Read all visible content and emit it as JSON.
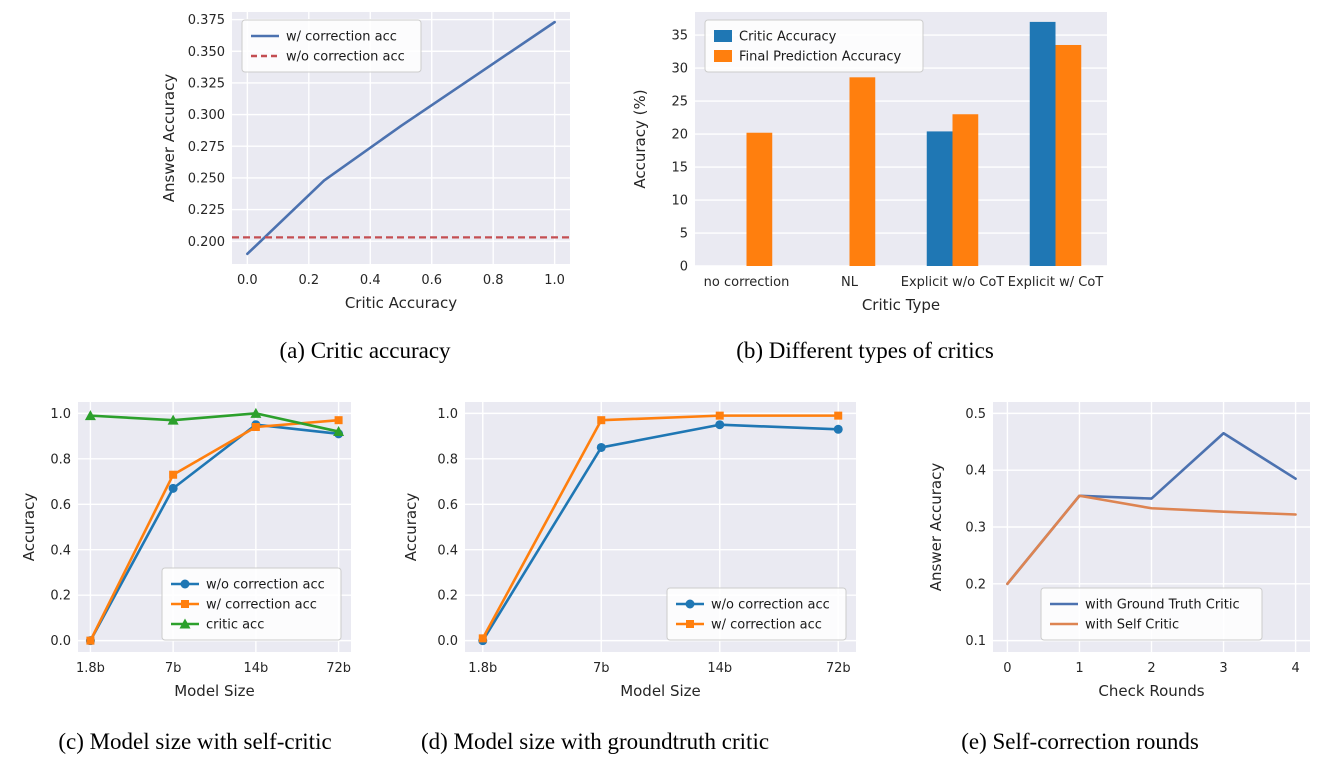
{
  "figure": {
    "captions": {
      "a": "(a) Critic accuracy",
      "b": "(b) Different types of critics",
      "c": "(c) Model size with self-critic",
      "d": "(d) Model size with groundtruth critic",
      "e": "(e) Self-correction rounds"
    }
  },
  "colors": {
    "plot_background": "#eaeaf2",
    "grid": "#ffffff",
    "seaborn_blue": "#4c72b0",
    "seaborn_red": "#c44e52",
    "seaborn_orange": "#dd8452",
    "tab_blue": "#1f77b4",
    "tab_orange": "#ff7f0e",
    "tab_green": "#2ca02c"
  },
  "chart_data": [
    {
      "id": "a",
      "type": "line",
      "title": "",
      "xlabel": "Critic Accuracy",
      "ylabel": "Answer Accuracy",
      "x": [
        0.0,
        0.25,
        0.5,
        0.75,
        1.0
      ],
      "series": [
        {
          "name": "w/ correction acc",
          "color": "#4c72b0",
          "marker": null,
          "values": [
            0.19,
            0.248,
            0.291,
            0.332,
            0.373
          ]
        },
        {
          "name": "w/o correction acc",
          "color": "#c44e52",
          "dash": true,
          "hline": 0.203
        }
      ],
      "xlim": [
        -0.05,
        1.05
      ],
      "ylim": [
        0.182,
        0.381
      ],
      "xticks": {
        "values": [
          0.0,
          0.2,
          0.4,
          0.6,
          0.8,
          1.0
        ],
        "labels": [
          "0.0",
          "0.2",
          "0.4",
          "0.6",
          "0.8",
          "1.0"
        ]
      },
      "yticks": {
        "values": [
          0.2,
          0.225,
          0.25,
          0.275,
          0.3,
          0.325,
          0.35,
          0.375
        ],
        "labels": [
          "0.200",
          "0.225",
          "0.250",
          "0.275",
          "0.300",
          "0.325",
          "0.350",
          "0.375"
        ]
      },
      "grid": true,
      "legend": {
        "position": "upper-left"
      }
    },
    {
      "id": "b",
      "type": "bar",
      "title": "",
      "xlabel": "Critic Type",
      "ylabel": "Accuracy (%)",
      "categories": [
        "no correction",
        "NL",
        "Explicit w/o CoT",
        "Explicit w/ CoT"
      ],
      "series": [
        {
          "name": "Critic Accuracy",
          "color": "#1f77b4",
          "values": [
            0,
            0,
            20.4,
            37.0
          ]
        },
        {
          "name": "Final Prediction Accuracy",
          "color": "#ff7f0e",
          "values": [
            20.2,
            28.6,
            23.0,
            33.5
          ]
        }
      ],
      "ylim": [
        0,
        38.5
      ],
      "yticks": {
        "values": [
          0,
          5,
          10,
          15,
          20,
          25,
          30,
          35
        ],
        "labels": [
          "0",
          "5",
          "10",
          "15",
          "20",
          "25",
          "30",
          "35"
        ]
      },
      "grid": true,
      "legend": {
        "position": "upper-left"
      }
    },
    {
      "id": "c",
      "type": "line",
      "title": "",
      "xlabel": "Model Size",
      "ylabel": "Accuracy",
      "categories": [
        "1.8b",
        "7b",
        "14b",
        "72b"
      ],
      "series": [
        {
          "name": "w/o correction acc",
          "color": "#1f77b4",
          "marker": "circle",
          "values": [
            0.0,
            0.67,
            0.95,
            0.91
          ]
        },
        {
          "name": "w/ correction acc",
          "color": "#ff7f0e",
          "marker": "square",
          "values": [
            0.0,
            0.73,
            0.94,
            0.97
          ]
        },
        {
          "name": "critic acc",
          "color": "#2ca02c",
          "marker": "triangle",
          "values": [
            0.99,
            0.97,
            1.0,
            0.92
          ]
        }
      ],
      "ylim": [
        -0.05,
        1.05
      ],
      "yticks": {
        "values": [
          0.0,
          0.2,
          0.4,
          0.6,
          0.8,
          1.0
        ],
        "labels": [
          "0.0",
          "0.2",
          "0.4",
          "0.6",
          "0.8",
          "1.0"
        ]
      },
      "grid": true,
      "legend": {
        "position": "lower-right"
      }
    },
    {
      "id": "d",
      "type": "line",
      "title": "",
      "xlabel": "Model Size",
      "ylabel": "Accuracy",
      "categories": [
        "1.8b",
        "7b",
        "14b",
        "72b"
      ],
      "series": [
        {
          "name": "w/o correction acc",
          "color": "#1f77b4",
          "marker": "circle",
          "values": [
            0.0,
            0.85,
            0.95,
            0.93
          ]
        },
        {
          "name": "w/ correction acc",
          "color": "#ff7f0e",
          "marker": "square",
          "values": [
            0.01,
            0.97,
            0.99,
            0.99
          ]
        }
      ],
      "ylim": [
        -0.05,
        1.05
      ],
      "yticks": {
        "values": [
          0.0,
          0.2,
          0.4,
          0.6,
          0.8,
          1.0
        ],
        "labels": [
          "0.0",
          "0.2",
          "0.4",
          "0.6",
          "0.8",
          "1.0"
        ]
      },
      "grid": true,
      "legend": {
        "position": "lower-right"
      }
    },
    {
      "id": "e",
      "type": "line",
      "title": "",
      "xlabel": "Check Rounds",
      "ylabel": "Answer Accuracy",
      "x": [
        0,
        1,
        2,
        3,
        4
      ],
      "series": [
        {
          "name": "with Ground Truth Critic",
          "color": "#4c72b0",
          "marker": null,
          "values": [
            0.2,
            0.355,
            0.35,
            0.465,
            0.385
          ]
        },
        {
          "name": "with Self Critic",
          "color": "#dd8452",
          "marker": null,
          "values": [
            0.2,
            0.355,
            0.333,
            0.327,
            0.322
          ]
        }
      ],
      "xlim": [
        -0.2,
        4.2
      ],
      "ylim": [
        0.08,
        0.52
      ],
      "xticks": {
        "values": [
          0,
          1,
          2,
          3,
          4
        ],
        "labels": [
          "0",
          "1",
          "2",
          "3",
          "4"
        ]
      },
      "yticks": {
        "values": [
          0.1,
          0.2,
          0.3,
          0.4,
          0.5
        ],
        "labels": [
          "0.1",
          "0.2",
          "0.3",
          "0.4",
          "0.5"
        ]
      },
      "grid": true,
      "legend": {
        "position": "lower-center"
      }
    }
  ]
}
